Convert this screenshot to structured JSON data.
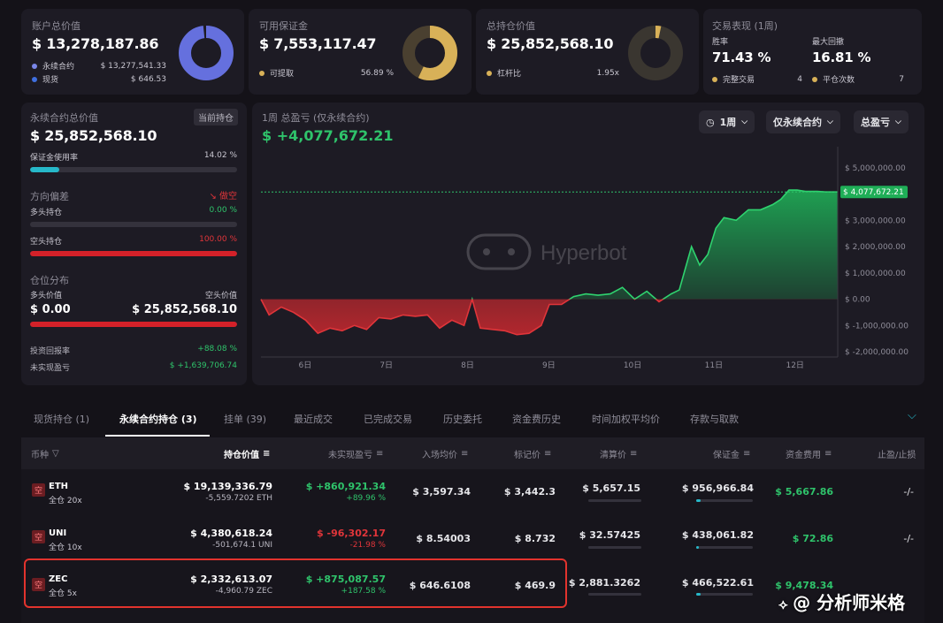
{
  "summary": {
    "account": {
      "label": "账户总价值",
      "value": "$ 13,278,187.86",
      "rows": [
        {
          "name": "永续合约",
          "value": "$ 13,277,541.33",
          "color": "#7a86e8"
        },
        {
          "name": "现货",
          "value": "$ 646.53",
          "color": "#3f6fe0"
        }
      ]
    },
    "margin": {
      "label": "可用保证金",
      "value": "$ 7,553,117.47",
      "rows": [
        {
          "name": "可提取",
          "value": "56.89 %",
          "color": "#d8b158"
        }
      ]
    },
    "position": {
      "label": "总持仓价值",
      "value": "$ 25,852,568.10",
      "rows": [
        {
          "name": "杠杆比",
          "value": "1.95x",
          "color": "#d8b158"
        }
      ]
    },
    "performance": {
      "label": "交易表现 (1周)",
      "winrate_label": "胜率",
      "winrate": "71.43 %",
      "drawdown_label": "最大回撤",
      "drawdown": "16.81 %",
      "completed_label": "完整交易",
      "completed": "4",
      "closes_label": "平仓次数",
      "closes": "7"
    }
  },
  "left_panel": {
    "perp_label": "永续合约总价值",
    "current_badge": "当前持仓",
    "perp_value": "$ 25,852,568.10",
    "margin_usage_label": "保证金使用率",
    "margin_usage": "14.02 %",
    "margin_usage_pct": 14.02,
    "direction_label": "方向偏差",
    "direction_value": "做空",
    "long_label": "多头持仓",
    "long_pct": "0.00 %",
    "long_frac": 0,
    "short_label": "空头持仓",
    "short_pct": "100.00 %",
    "short_frac": 100,
    "dist_label": "仓位分布",
    "long_value_label": "多头价值",
    "short_value_label": "空头价值",
    "long_value": "$ 0.00",
    "short_value": "$ 25,852,568.10",
    "roi_label": "投资回报率",
    "roi": "+88.08 %",
    "upnl_label": "未实现盈亏",
    "upnl": "$ +1,639,706.74"
  },
  "chart_header": {
    "title": "1周 总盈亏 (仅永续合约)",
    "value": "$ +4,077,672.21",
    "period": "1周",
    "filter": "仅永续合约",
    "metric": "总盈亏",
    "watermark": "Hyperbot"
  },
  "chart_data": {
    "type": "area",
    "x_ticks": [
      "6日",
      "7日",
      "8日",
      "9日",
      "10日",
      "11日",
      "12日"
    ],
    "y_ticks": [
      "$ 5,000,000.00",
      "$ 4,000,000.00",
      "$ 3,000,000.00",
      "$ 2,000,000.00",
      "$ 1,000,000.00",
      "$ 0.00",
      "$ -1,000,000.00",
      "$ -2,000,000.00"
    ],
    "ylim": [
      -2200000,
      5800000
    ],
    "xlim": [
      5.45,
      12.55
    ],
    "current_label": "$ 4,077,672.21",
    "current": 4077672,
    "x": [
      5.45,
      5.55,
      5.7,
      5.85,
      6.0,
      6.15,
      6.3,
      6.45,
      6.6,
      6.75,
      6.9,
      7.05,
      7.2,
      7.35,
      7.5,
      7.65,
      7.8,
      7.95,
      8.05,
      8.15,
      8.3,
      8.45,
      8.6,
      8.75,
      8.9,
      9.0,
      9.15,
      9.3,
      9.45,
      9.6,
      9.75,
      9.9,
      10.05,
      10.2,
      10.35,
      10.5,
      10.6,
      10.75,
      10.85,
      10.95,
      11.05,
      11.15,
      11.3,
      11.45,
      11.6,
      11.75,
      11.85,
      11.95,
      12.05,
      12.15,
      12.3,
      12.4,
      12.55
    ],
    "values": [
      0,
      -600000,
      -300000,
      -500000,
      -800000,
      -1300000,
      -1100000,
      -1200000,
      -1000000,
      -1150000,
      -700000,
      -750000,
      -600000,
      -650000,
      -600000,
      -1100000,
      -800000,
      -1000000,
      0,
      -1100000,
      -1150000,
      -1200000,
      -1350000,
      -1300000,
      -1000000,
      -200000,
      -200000,
      100000,
      200000,
      150000,
      200000,
      450000,
      0,
      300000,
      -100000,
      200000,
      350000,
      2000000,
      1300000,
      1700000,
      2700000,
      3100000,
      3000000,
      3400000,
      3400000,
      3600000,
      3800000,
      4150000,
      4150000,
      4100000,
      4100000,
      4077672,
      4077672
    ]
  },
  "tabs": [
    "现货持仓 (1)",
    "永续合约持仓 (3)",
    "挂单 (39)",
    "最近成交",
    "已完成交易",
    "历史委托",
    "资金费历史",
    "时间加权平均价",
    "存款与取款"
  ],
  "active_tab": 1,
  "table": {
    "headers": [
      "币种",
      "持仓价值",
      "未实现盈亏",
      "入场均价",
      "标记价",
      "清算价",
      "保证金",
      "资金费用",
      "止盈/止损"
    ],
    "rows": [
      {
        "side": "空",
        "coin": "ETH",
        "lev": "全仓 20x",
        "value": "$ 19,139,336.79",
        "size": "-5,559.7202 ETH",
        "pnl": "$ +860,921.34",
        "pnl_pct": "+89.96 %",
        "pnl_color": "#2fc36b",
        "entry": "$ 3,597.34",
        "mark": "$ 3,442.3",
        "liq": "$ 5,657.15",
        "margin": "$ 956,966.84",
        "funding": "$ 5,667.86",
        "tpsl": "-/-"
      },
      {
        "side": "空",
        "coin": "UNI",
        "lev": "全仓 10x",
        "value": "$ 4,380,618.24",
        "size": "-501,674.1 UNI",
        "pnl": "$ -96,302.17",
        "pnl_pct": "-21.98 %",
        "pnl_color": "#e0353a",
        "entry": "$ 8.54003",
        "mark": "$ 8.732",
        "liq": "$ 32.57425",
        "margin": "$ 438,061.82",
        "funding": "$ 72.86",
        "tpsl": "-/-"
      },
      {
        "side": "空",
        "coin": "ZEC",
        "lev": "全仓 5x",
        "value": "$ 2,332,613.07",
        "size": "-4,960.79 ZEC",
        "pnl": "$ +875,087.57",
        "pnl_pct": "+187.58 %",
        "pnl_color": "#2fc36b",
        "entry": "$ 646.6108",
        "mark": "$ 469.9",
        "liq": "$ 2,881.3262",
        "margin": "$ 466,522.61",
        "funding": "$ 9,478.34",
        "tpsl": "-/-"
      }
    ]
  },
  "watermark_text": "@ 分析师米格"
}
